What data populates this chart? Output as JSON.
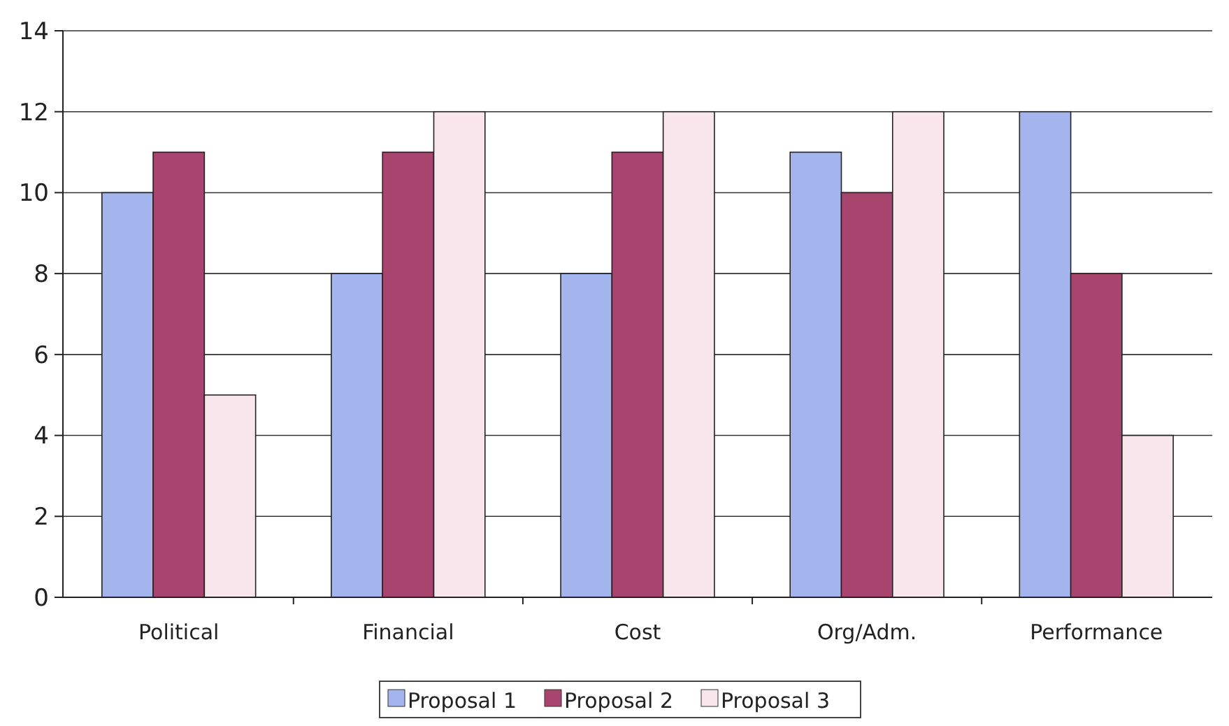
{
  "chart_data": {
    "type": "bar",
    "categories": [
      "Political",
      "Financial",
      "Cost",
      "Org/Adm.",
      "Performance"
    ],
    "series": [
      {
        "name": "Proposal 1",
        "color": "#a4b4ec",
        "values": [
          10,
          8,
          8,
          11,
          12
        ]
      },
      {
        "name": "Proposal 2",
        "color": "#a8456f",
        "values": [
          11,
          11,
          11,
          10,
          8
        ]
      },
      {
        "name": "Proposal 3",
        "color": "#f9e6ec",
        "values": [
          5,
          12,
          12,
          12,
          4
        ]
      }
    ],
    "ylim": [
      0,
      14
    ],
    "yticks": [
      0,
      2,
      4,
      6,
      8,
      10,
      12,
      14
    ],
    "grid": "y",
    "legend": "bottom"
  }
}
